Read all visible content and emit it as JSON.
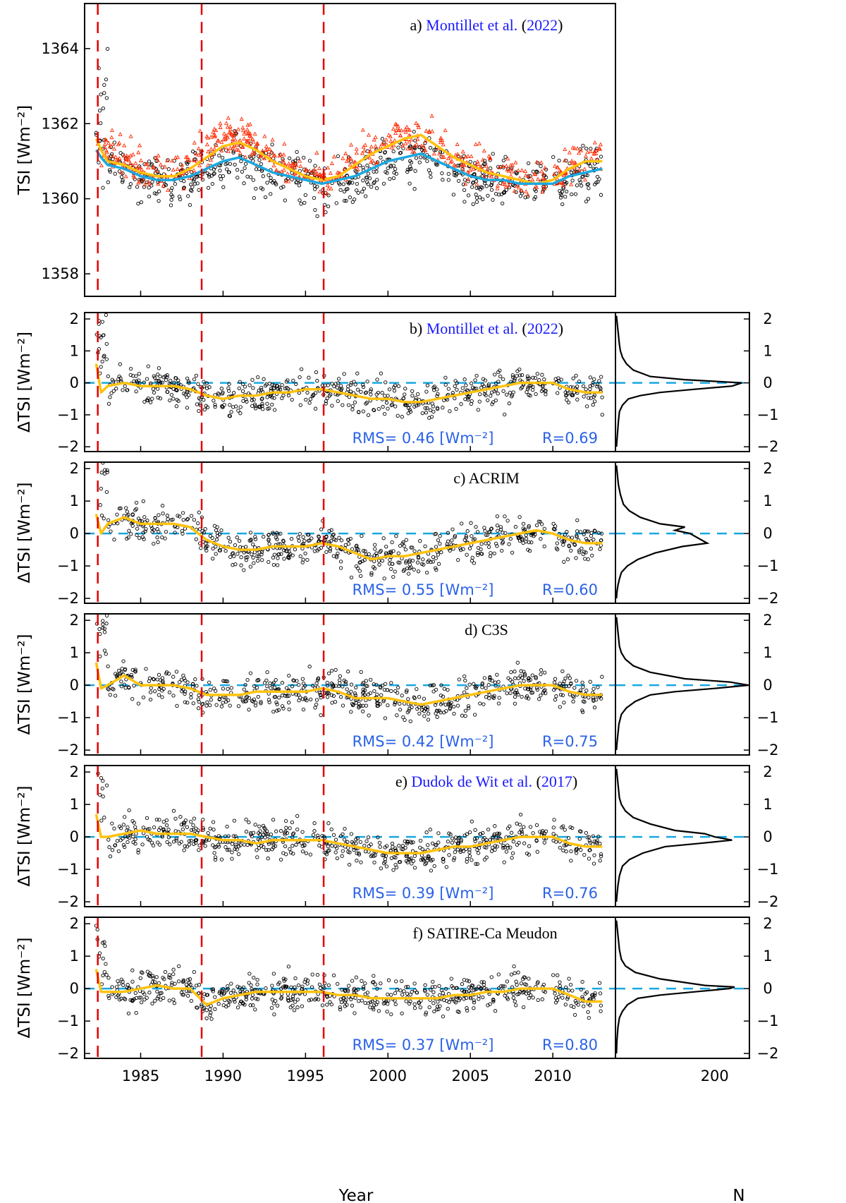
{
  "figure": {
    "x_axis": {
      "label": "Year",
      "range": [
        1981.6,
        2013.8
      ],
      "ticks": [
        1985,
        1990,
        1995,
        2000,
        2005,
        2010
      ]
    },
    "hist_axis": {
      "label": "N",
      "range": [
        0,
        270
      ],
      "ticks": [
        200
      ]
    },
    "colors": {
      "red_markers": "#ff2a00",
      "yellow_line": "#ffc20e",
      "blue_line": "#1aa8e0",
      "zero_line": "#1aa8e0",
      "dashed_vertical": "#e60000",
      "link_blue": "#1a1aff",
      "stats_blue": "#2a62e6"
    },
    "dashed_years": [
      1982.4,
      1988.7,
      1996.1
    ]
  },
  "chart_data": [
    {
      "id": "a",
      "type": "scatter",
      "title_parts": [
        "a) ",
        "Montillet et al.",
        " (",
        "2022",
        ")"
      ],
      "title_linked": [
        false,
        true,
        false,
        true,
        false
      ],
      "ylabel": "TSI [Wm⁻²]",
      "ylim": [
        1357.4,
        1365.2
      ],
      "yticks": [
        1358,
        1360,
        1362,
        1364
      ],
      "series": [
        {
          "style": "red-triangles",
          "x": [
            1982.2,
            1982.8,
            1983.5,
            1984.5,
            1985.5,
            1986.5,
            1987.5,
            1988.5,
            1989.5,
            1990.5,
            1991.5,
            1992.5,
            1993.5,
            1994.5,
            1995.5,
            1996.5,
            1997.5,
            1998.5,
            1999.5,
            2000.5,
            2001.5,
            2002.5,
            2003.5,
            2004.5,
            2005.5,
            2006.5,
            2007.5,
            2008.5,
            2009.5,
            2010.5,
            2011.5,
            2012.5,
            2013.0
          ],
          "y": [
            1361.6,
            1361.4,
            1361.2,
            1361.0,
            1360.7,
            1360.6,
            1360.8,
            1361.2,
            1361.5,
            1361.7,
            1361.6,
            1361.4,
            1361.0,
            1360.8,
            1360.6,
            1360.6,
            1360.9,
            1361.2,
            1361.4,
            1361.6,
            1361.6,
            1361.7,
            1361.3,
            1361.0,
            1360.9,
            1360.7,
            1360.6,
            1360.5,
            1360.5,
            1360.6,
            1361.0,
            1361.1,
            1361.1
          ]
        },
        {
          "name": "",
          "style": "yellow-line",
          "x": [
            1982.3,
            1982.6,
            1983.0,
            1984.0,
            1985.0,
            1986.0,
            1987.0,
            1988.0,
            1989.0,
            1990.0,
            1991.0,
            1992.0,
            1993.0,
            1994.0,
            1995.0,
            1996.0,
            1997.0,
            1998.0,
            1999.0,
            2000.0,
            2001.0,
            2002.0,
            2003.0,
            2004.0,
            2005.0,
            2006.0,
            2007.0,
            2008.0,
            2009.0,
            2010.0,
            2011.0,
            2012.0,
            2013.0
          ],
          "y": [
            1361.6,
            1361.3,
            1361.0,
            1360.9,
            1360.7,
            1360.6,
            1360.6,
            1360.8,
            1361.1,
            1361.4,
            1361.5,
            1361.3,
            1361.0,
            1360.8,
            1360.6,
            1360.5,
            1360.6,
            1360.9,
            1361.2,
            1361.4,
            1361.6,
            1361.7,
            1361.4,
            1361.1,
            1360.9,
            1360.7,
            1360.6,
            1360.5,
            1360.4,
            1360.5,
            1360.8,
            1361.0,
            1361.0
          ]
        },
        {
          "name": "",
          "style": "blue-line",
          "x": [
            1982.3,
            1982.6,
            1983.0,
            1984.0,
            1985.0,
            1986.0,
            1987.0,
            1988.0,
            1989.0,
            1990.0,
            1991.0,
            1992.0,
            1993.0,
            1994.0,
            1995.0,
            1996.0,
            1997.0,
            1998.0,
            1999.0,
            2000.0,
            2001.0,
            2002.0,
            2003.0,
            2004.0,
            2005.0,
            2006.0,
            2007.0,
            2008.0,
            2009.0,
            2010.0,
            2011.0,
            2012.0,
            2013.0
          ],
          "y": [
            1361.3,
            1361.1,
            1360.9,
            1360.8,
            1360.6,
            1360.5,
            1360.5,
            1360.6,
            1360.8,
            1361.0,
            1361.1,
            1360.9,
            1360.7,
            1360.6,
            1360.5,
            1360.4,
            1360.5,
            1360.6,
            1360.8,
            1361.0,
            1361.1,
            1361.2,
            1361.0,
            1360.8,
            1360.6,
            1360.5,
            1360.5,
            1360.4,
            1360.4,
            1360.4,
            1360.6,
            1360.7,
            1360.8
          ]
        }
      ]
    },
    {
      "id": "b",
      "type": "scatter",
      "title_parts": [
        "b) ",
        "Montillet et al.",
        " (",
        "2022",
        ")"
      ],
      "title_linked": [
        false,
        true,
        false,
        true,
        false
      ],
      "ylabel": "ΔTSI [Wm⁻²]",
      "ylim": [
        -2.15,
        2.2
      ],
      "yticks": [
        -2,
        -1,
        0,
        1,
        2
      ],
      "rms": "RMS= 0.46 [Wm⁻²]",
      "r": "R=0.69",
      "trend": {
        "x": [
          1982.3,
          1982.6,
          1983.0,
          1984.0,
          1985.0,
          1986.0,
          1987.0,
          1988.0,
          1989.0,
          1990.0,
          1991.0,
          1992.0,
          1993.0,
          1994.0,
          1995.0,
          1996.0,
          1997.0,
          1998.0,
          1999.0,
          2000.0,
          2001.0,
          2002.0,
          2003.0,
          2004.0,
          2005.0,
          2006.0,
          2007.0,
          2008.0,
          2009.0,
          2010.0,
          2011.0,
          2012.0,
          2013.0
        ],
        "y": [
          0.6,
          -0.3,
          -0.1,
          0.0,
          -0.1,
          -0.1,
          -0.1,
          -0.2,
          -0.4,
          -0.5,
          -0.4,
          -0.4,
          -0.3,
          -0.3,
          -0.2,
          -0.2,
          -0.3,
          -0.4,
          -0.5,
          -0.5,
          -0.6,
          -0.6,
          -0.5,
          -0.4,
          -0.3,
          -0.2,
          -0.1,
          0.0,
          0.0,
          0.0,
          -0.2,
          -0.3,
          -0.3
        ]
      },
      "hist": {
        "x": [
          2,
          4,
          6,
          8,
          10,
          14,
          22,
          36,
          70,
          140,
          255,
          235,
          160,
          90,
          50,
          26,
          14,
          8,
          6,
          4,
          2
        ],
        "y": [
          2.1,
          1.8,
          1.5,
          1.2,
          1.0,
          0.8,
          0.6,
          0.4,
          0.2,
          0.1,
          0.0,
          -0.1,
          -0.2,
          -0.3,
          -0.4,
          -0.5,
          -0.7,
          -0.9,
          -1.2,
          -1.6,
          -2.0
        ]
      }
    },
    {
      "id": "c",
      "type": "scatter",
      "title_parts": [
        "c) ACRIM"
      ],
      "title_linked": [
        false
      ],
      "ylabel": "ΔTSI [Wm⁻²]",
      "ylim": [
        -2.15,
        2.2
      ],
      "yticks": [
        -2,
        -1,
        0,
        1,
        2
      ],
      "rms": "RMS= 0.55 [Wm⁻²]",
      "r": "R=0.60",
      "trend": {
        "x": [
          1982.3,
          1982.6,
          1983.0,
          1984.0,
          1985.0,
          1986.0,
          1987.0,
          1988.0,
          1989.0,
          1990.0,
          1991.0,
          1992.0,
          1993.0,
          1994.0,
          1995.0,
          1996.0,
          1997.0,
          1998.0,
          1999.0,
          2000.0,
          2001.0,
          2002.0,
          2003.0,
          2004.0,
          2005.0,
          2006.0,
          2007.0,
          2008.0,
          2009.0,
          2010.0,
          2011.0,
          2012.0,
          2013.0
        ],
        "y": [
          0.6,
          0.0,
          0.3,
          0.5,
          0.3,
          0.3,
          0.3,
          0.2,
          -0.2,
          -0.4,
          -0.5,
          -0.5,
          -0.4,
          -0.4,
          -0.4,
          -0.3,
          -0.4,
          -0.6,
          -0.8,
          -0.7,
          -0.7,
          -0.6,
          -0.5,
          -0.4,
          -0.3,
          -0.2,
          -0.1,
          0.0,
          0.1,
          0.0,
          -0.2,
          -0.3,
          -0.3
        ]
      },
      "hist": {
        "x": [
          2,
          4,
          6,
          10,
          16,
          28,
          50,
          90,
          140,
          120,
          150,
          185,
          135,
          80,
          45,
          24,
          12,
          8,
          5,
          3,
          2
        ],
        "y": [
          2.1,
          1.8,
          1.5,
          1.2,
          0.9,
          0.7,
          0.5,
          0.3,
          0.2,
          0.1,
          0.0,
          -0.3,
          -0.4,
          -0.6,
          -0.8,
          -1.0,
          -1.2,
          -1.4,
          -1.6,
          -1.8,
          -2.0
        ]
      }
    },
    {
      "id": "d",
      "type": "scatter",
      "title_parts": [
        "d) C3S"
      ],
      "title_linked": [
        false
      ],
      "ylabel": "ΔTSI [Wm⁻²]",
      "ylim": [
        -2.15,
        2.2
      ],
      "yticks": [
        -2,
        -1,
        0,
        1,
        2
      ],
      "rms": "RMS= 0.42 [Wm⁻²]",
      "r": "R=0.75",
      "trend": {
        "x": [
          1982.3,
          1982.6,
          1983.0,
          1984.0,
          1985.0,
          1986.0,
          1987.0,
          1988.0,
          1989.0,
          1990.0,
          1991.0,
          1992.0,
          1993.0,
          1994.0,
          1995.0,
          1996.0,
          1997.0,
          1998.0,
          1999.0,
          2000.0,
          2001.0,
          2002.0,
          2003.0,
          2004.0,
          2005.0,
          2006.0,
          2007.0,
          2008.0,
          2009.0,
          2010.0,
          2011.0,
          2012.0,
          2013.0
        ],
        "y": [
          0.7,
          -0.1,
          0.0,
          0.3,
          0.0,
          0.0,
          0.0,
          -0.1,
          -0.3,
          -0.3,
          -0.3,
          -0.2,
          -0.2,
          -0.2,
          -0.2,
          -0.1,
          -0.2,
          -0.4,
          -0.4,
          -0.4,
          -0.5,
          -0.6,
          -0.5,
          -0.4,
          -0.3,
          -0.2,
          -0.1,
          0.0,
          0.0,
          0.0,
          -0.2,
          -0.3,
          -0.3
        ]
      },
      "hist": {
        "x": [
          2,
          4,
          6,
          8,
          12,
          20,
          36,
          70,
          140,
          230,
          268,
          200,
          120,
          70,
          40,
          22,
          12,
          7,
          5,
          3,
          2
        ],
        "y": [
          2.1,
          1.8,
          1.5,
          1.2,
          1.0,
          0.8,
          0.6,
          0.4,
          0.2,
          0.1,
          0.0,
          -0.1,
          -0.2,
          -0.3,
          -0.5,
          -0.7,
          -0.9,
          -1.2,
          -1.5,
          -1.8,
          -2.0
        ]
      }
    },
    {
      "id": "e",
      "type": "scatter",
      "title_parts": [
        "e) ",
        "Dudok de Wit et al.",
        " (",
        "2017",
        ")"
      ],
      "title_linked": [
        false,
        true,
        false,
        true,
        false
      ],
      "ylabel": "ΔTSI [Wm⁻²]",
      "ylim": [
        -2.15,
        2.2
      ],
      "yticks": [
        -2,
        -1,
        0,
        1,
        2
      ],
      "rms": "RMS= 0.39 [Wm⁻²]",
      "r": "R=0.76",
      "trend": {
        "x": [
          1982.3,
          1982.6,
          1983.0,
          1984.0,
          1985.0,
          1986.0,
          1987.0,
          1988.0,
          1989.0,
          1990.0,
          1991.0,
          1992.0,
          1993.0,
          1994.0,
          1995.0,
          1996.0,
          1997.0,
          1998.0,
          1999.0,
          2000.0,
          2001.0,
          2002.0,
          2003.0,
          2004.0,
          2005.0,
          2006.0,
          2007.0,
          2008.0,
          2009.0,
          2010.0,
          2011.0,
          2012.0,
          2013.0
        ],
        "y": [
          0.7,
          0.0,
          0.0,
          0.1,
          0.2,
          0.1,
          0.1,
          0.1,
          0.0,
          -0.1,
          -0.1,
          -0.2,
          -0.1,
          -0.1,
          -0.1,
          -0.1,
          -0.2,
          -0.3,
          -0.4,
          -0.5,
          -0.5,
          -0.5,
          -0.4,
          -0.3,
          -0.3,
          -0.2,
          -0.1,
          0.0,
          0.0,
          0.0,
          -0.2,
          -0.3,
          -0.3
        ]
      },
      "hist": {
        "x": [
          2,
          4,
          6,
          8,
          12,
          20,
          36,
          70,
          120,
          180,
          200,
          235,
          170,
          100,
          55,
          28,
          14,
          8,
          5,
          3,
          2
        ],
        "y": [
          2.1,
          1.8,
          1.5,
          1.2,
          1.0,
          0.8,
          0.6,
          0.4,
          0.2,
          0.1,
          0.0,
          -0.1,
          -0.2,
          -0.3,
          -0.5,
          -0.7,
          -0.9,
          -1.2,
          -1.5,
          -1.8,
          -2.0
        ]
      }
    },
    {
      "id": "f",
      "type": "scatter",
      "title_parts": [
        "f) SATIRE-Ca Meudon"
      ],
      "title_linked": [
        false
      ],
      "ylabel": "ΔTSI [Wm⁻²]",
      "ylim": [
        -2.15,
        2.2
      ],
      "yticks": [
        -2,
        -1,
        0,
        1,
        2
      ],
      "rms": "RMS= 0.37 [Wm⁻²]",
      "r": "R=0.80",
      "trend": {
        "x": [
          1982.3,
          1982.6,
          1983.0,
          1984.0,
          1985.0,
          1986.0,
          1987.0,
          1988.0,
          1989.0,
          1990.0,
          1991.0,
          1992.0,
          1993.0,
          1994.0,
          1995.0,
          1996.0,
          1997.0,
          1998.0,
          1999.0,
          2000.0,
          2001.0,
          2002.0,
          2003.0,
          2004.0,
          2005.0,
          2006.0,
          2007.0,
          2008.0,
          2009.0,
          2010.0,
          2011.0,
          2012.0,
          2013.0
        ],
        "y": [
          0.6,
          -0.1,
          -0.1,
          -0.1,
          0.0,
          0.1,
          0.0,
          0.0,
          -0.5,
          -0.3,
          -0.2,
          -0.1,
          -0.1,
          -0.1,
          -0.1,
          -0.1,
          -0.2,
          -0.2,
          -0.3,
          -0.3,
          -0.3,
          -0.3,
          -0.3,
          -0.2,
          -0.2,
          -0.1,
          -0.1,
          0.0,
          0.0,
          0.0,
          -0.2,
          -0.4,
          -0.4
        ]
      },
      "hist": {
        "x": [
          2,
          4,
          6,
          8,
          12,
          20,
          40,
          90,
          180,
          240,
          230,
          160,
          90,
          45,
          24,
          14,
          8,
          5,
          3,
          2
        ],
        "y": [
          2.1,
          1.8,
          1.5,
          1.2,
          0.9,
          0.7,
          0.5,
          0.3,
          0.1,
          0.05,
          0.0,
          -0.1,
          -0.2,
          -0.3,
          -0.5,
          -0.7,
          -0.9,
          -1.2,
          -1.6,
          -2.0
        ]
      }
    }
  ]
}
